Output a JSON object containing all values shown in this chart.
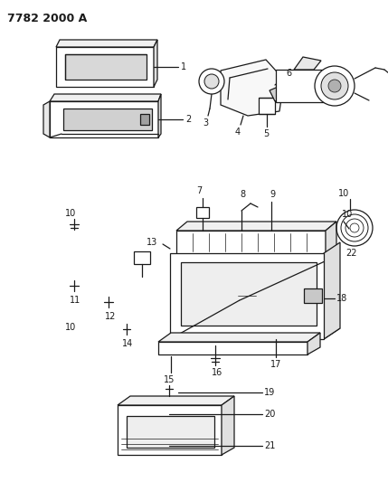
{
  "title": "7782 2000 A",
  "bg_color": "#ffffff",
  "line_color": "#1a1a1a",
  "title_fontsize": 9,
  "label_fontsize": 7,
  "fig_width": 4.29,
  "fig_height": 5.33,
  "dpi": 100
}
